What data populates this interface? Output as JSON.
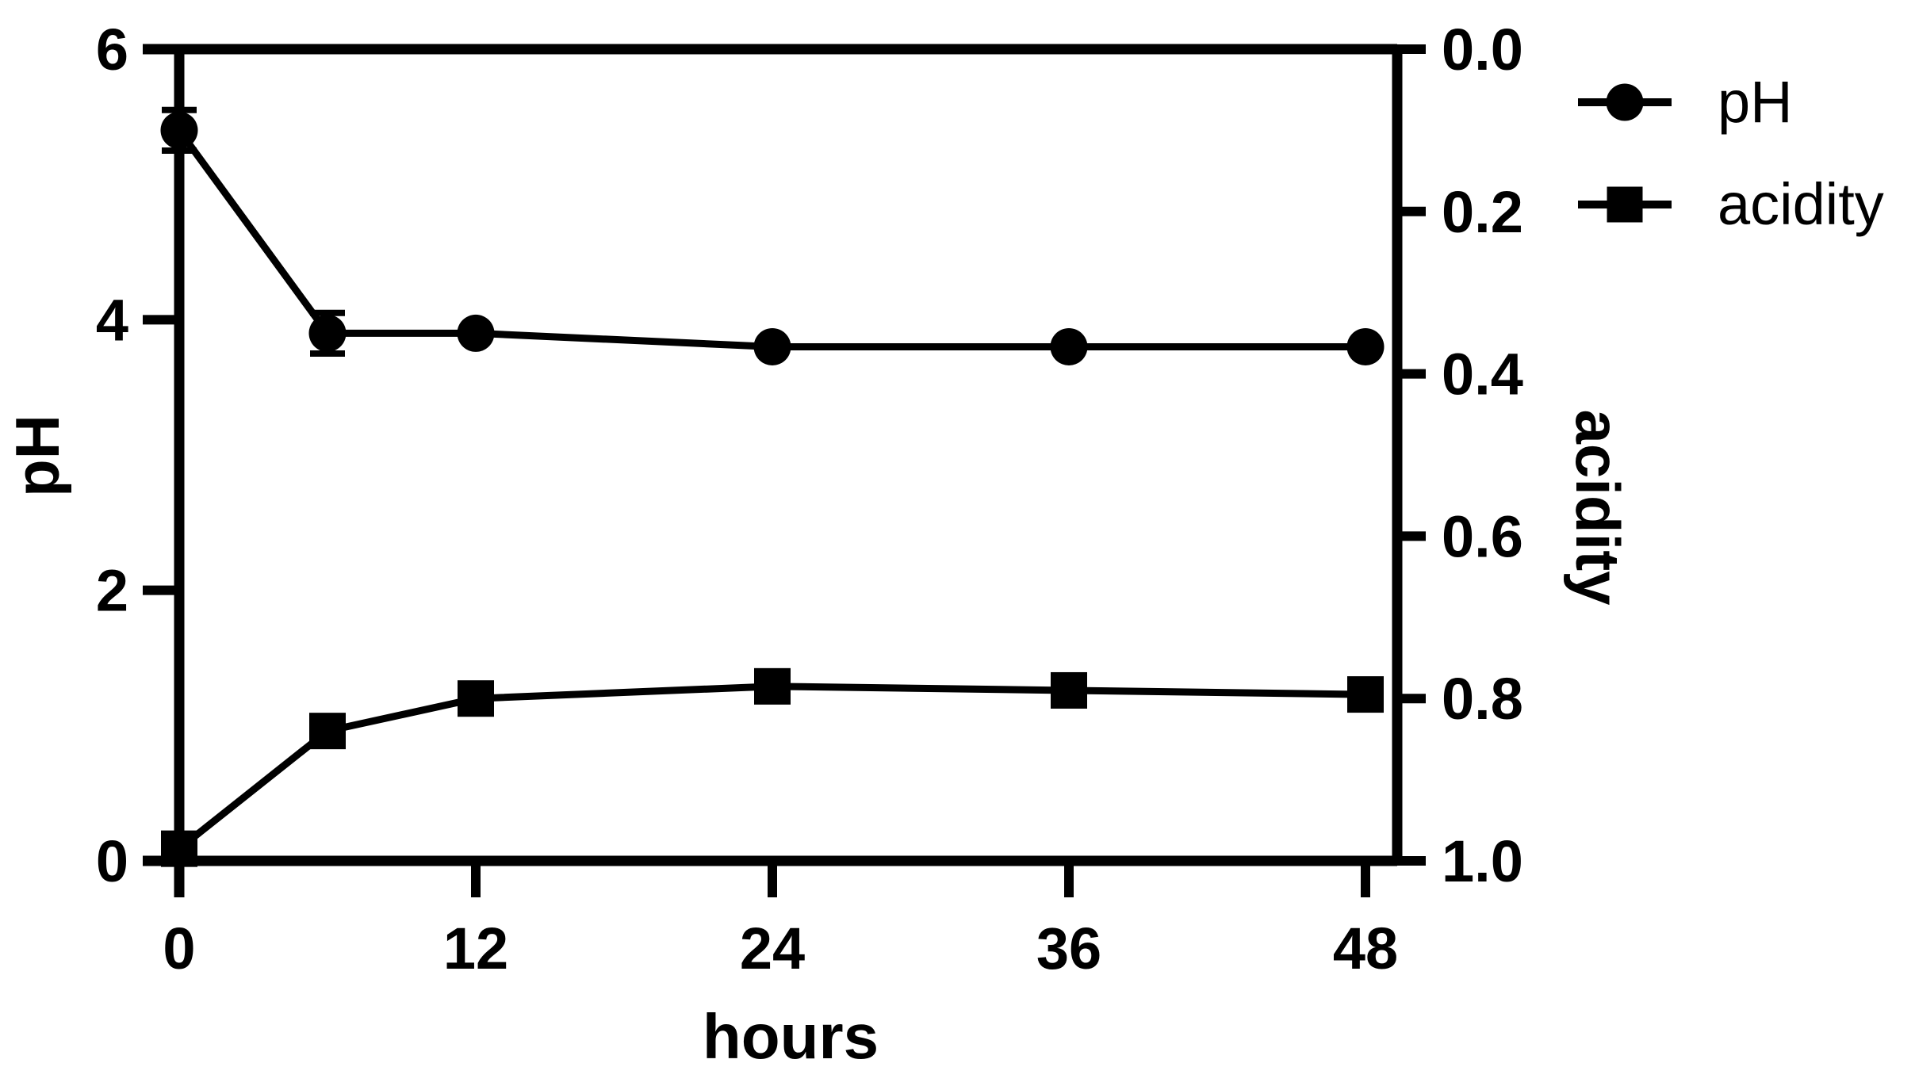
{
  "figure": {
    "background": "#ffffff",
    "foreground": "#000000"
  },
  "chart_data": {
    "type": "line",
    "x": [
      0,
      6,
      12,
      24,
      36,
      48
    ],
    "xlabel": "hours",
    "x_axis": {
      "ticks": [
        0,
        12,
        24,
        36,
        48
      ],
      "range": [
        0,
        48
      ]
    },
    "left_axis": {
      "label": "pH",
      "ticks": [
        6,
        4,
        2,
        0
      ],
      "range": [
        0,
        6
      ]
    },
    "right_axis": {
      "label": "acidity",
      "ticks": [
        "0.0",
        "0.2",
        "0.4",
        "0.6",
        "0.8",
        "1.0"
      ],
      "range": [
        0.0,
        1.0
      ],
      "inverted": true
    },
    "series": [
      {
        "name": "pH",
        "marker": "circle",
        "axis": "left",
        "values": [
          5.4,
          3.9,
          3.9,
          3.8,
          3.8,
          3.8
        ],
        "errors": [
          0.15,
          0.15,
          0,
          0,
          0,
          0
        ]
      },
      {
        "name": "acidity",
        "marker": "square",
        "axis": "right",
        "values": [
          0.985,
          0.84,
          0.8,
          0.785,
          0.79,
          0.795
        ],
        "errors": [
          0,
          0,
          0,
          0,
          0,
          0
        ]
      }
    ],
    "legend": {
      "position": "top-right-outside",
      "items": [
        "pH",
        "acidity"
      ]
    },
    "grid": false,
    "line_color": "#000000"
  }
}
